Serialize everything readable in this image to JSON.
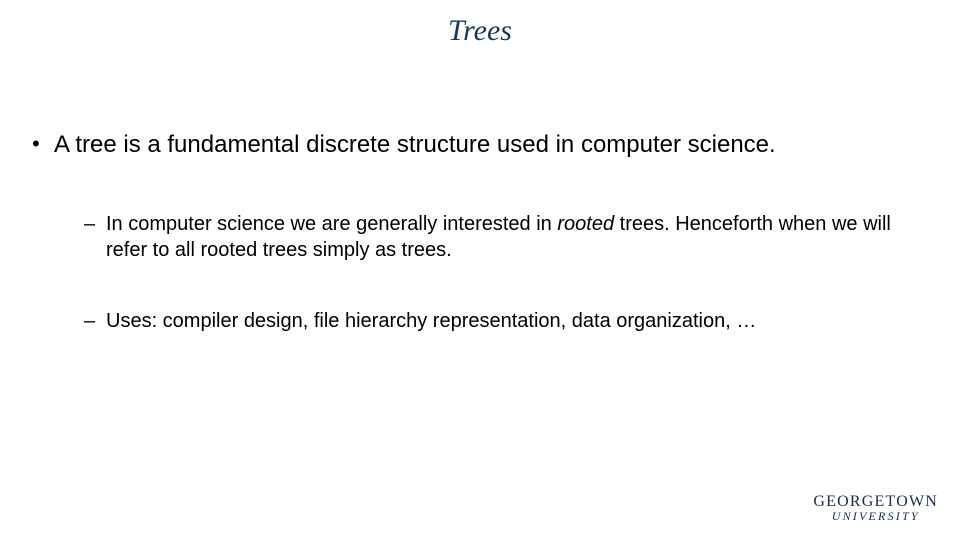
{
  "title": "Trees",
  "bullets": {
    "b1": "A tree is a fundamental discrete structure used in computer science.",
    "b2_pre": "In computer science we are generally interested in ",
    "b2_em": "rooted",
    "b2_post": " trees. Henceforth when we will refer to all rooted trees simply as trees.",
    "b3": "Uses: compiler design, file hierarchy representation, data organization, …"
  },
  "logo": {
    "line1": "GEORGETOWN",
    "line2": "UNIVERSITY"
  },
  "colors": {
    "title_color": "#133a5a",
    "body_color": "#000000",
    "logo_color": "#1a2f4a",
    "background": "#ffffff"
  },
  "fonts": {
    "title_family": "Times New Roman, serif",
    "title_style": "italic",
    "title_size_pt": 22,
    "body_family": "Arial, sans-serif",
    "bullet1_size_pt": 18,
    "bullet2_size_pt": 15
  }
}
